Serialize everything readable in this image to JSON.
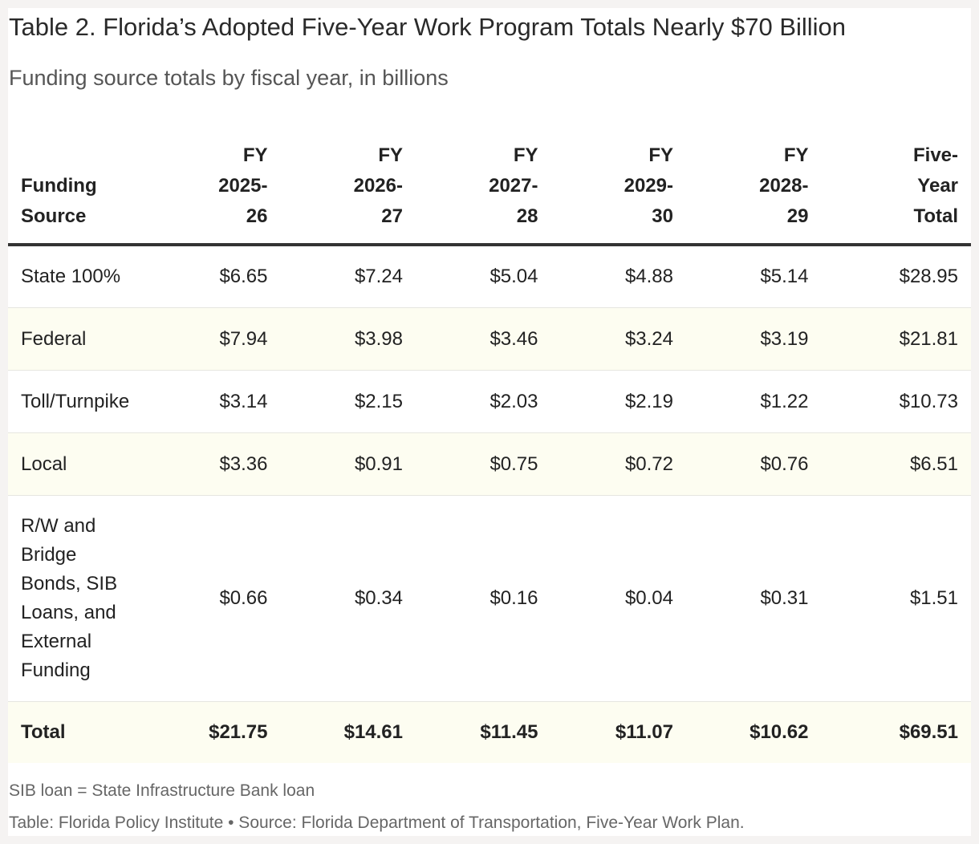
{
  "chart_data": {
    "type": "table",
    "title": "Table 2. Florida’s Adopted Five-Year Work Program Totals Nearly $70 Billion",
    "subtitle": "Funding source totals by fiscal year, in billions",
    "columns": [
      [
        "Funding",
        "Source"
      ],
      [
        "FY",
        "2025-",
        "26"
      ],
      [
        "FY",
        "2026-",
        "27"
      ],
      [
        "FY",
        "2027-",
        "28"
      ],
      [
        "FY",
        "2029-",
        "30"
      ],
      [
        "FY",
        "2028-",
        "29"
      ],
      [
        "Five-",
        "Year",
        "Total"
      ]
    ],
    "rows": [
      {
        "label": [
          "State 100%"
        ],
        "values": [
          "$6.65",
          "$7.24",
          "$5.04",
          "$4.88",
          "$5.14",
          "$28.95"
        ]
      },
      {
        "label": [
          "Federal"
        ],
        "values": [
          "$7.94",
          "$3.98",
          "$3.46",
          "$3.24",
          "$3.19",
          "$21.81"
        ]
      },
      {
        "label": [
          "Toll/Turnpike"
        ],
        "values": [
          "$3.14",
          "$2.15",
          "$2.03",
          "$2.19",
          "$1.22",
          "$10.73"
        ]
      },
      {
        "label": [
          "Local"
        ],
        "values": [
          "$3.36",
          "$0.91",
          "$0.75",
          "$0.72",
          "$0.76",
          "$6.51"
        ]
      },
      {
        "label": [
          "R/W and",
          "Bridge",
          "Bonds, SIB",
          "Loans, and",
          "External",
          "Funding"
        ],
        "values": [
          "$0.66",
          "$0.34",
          "$0.16",
          "$0.04",
          "$0.31",
          "$1.51"
        ]
      },
      {
        "label": [
          "Total"
        ],
        "values": [
          "$21.75",
          "$14.61",
          "$11.45",
          "$11.07",
          "$10.62",
          "$69.51"
        ]
      }
    ],
    "note": "SIB loan = State Infrastructure Bank loan",
    "source": "Table: Florida Policy Institute • Source: Florida Department of Transportation, Five-Year Work Plan."
  }
}
